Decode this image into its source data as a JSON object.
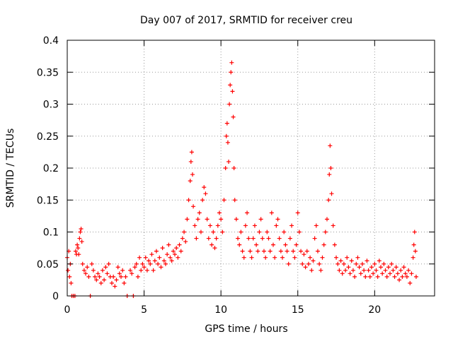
{
  "chart_data": {
    "type": "scatter",
    "title": "Day 007 of 2017, SRMTID for receiver creu",
    "xlabel": "GPS time / hours",
    "ylabel": "SRMTID / TECUs",
    "xlim": [
      0,
      23.9
    ],
    "ylim": [
      0,
      0.4
    ],
    "x_ticks": [
      0,
      5,
      10,
      15,
      20
    ],
    "x_tick_labels": [
      "0",
      "5",
      "10",
      "15",
      "20"
    ],
    "y_ticks": [
      0,
      0.05,
      0.1,
      0.15,
      0.2,
      0.25,
      0.3,
      0.35,
      0.4
    ],
    "y_tick_labels": [
      "0",
      "0.05",
      "0.1",
      "0.15",
      "0.2",
      "0.25",
      "0.3",
      "0.35",
      "0.4"
    ],
    "grid": true,
    "marker": "+",
    "series": [
      {
        "name": "SRMTID",
        "color": "#ff0000",
        "points": [
          [
            0.0,
            0.06
          ],
          [
            0.05,
            0.04
          ],
          [
            0.1,
            0.07
          ],
          [
            0.15,
            0.03
          ],
          [
            0.2,
            0.05
          ],
          [
            0.25,
            0.02
          ],
          [
            0.3,
            0.0
          ],
          [
            0.4,
            0.0
          ],
          [
            0.5,
            0.0
          ],
          [
            0.55,
            0.07
          ],
          [
            0.6,
            0.065
          ],
          [
            0.65,
            0.08
          ],
          [
            0.7,
            0.075
          ],
          [
            0.75,
            0.065
          ],
          [
            0.8,
            0.09
          ],
          [
            0.85,
            0.1
          ],
          [
            0.9,
            0.105
          ],
          [
            0.95,
            0.085
          ],
          [
            1.0,
            0.05
          ],
          [
            1.1,
            0.04
          ],
          [
            1.2,
            0.035
          ],
          [
            1.3,
            0.045
          ],
          [
            1.4,
            0.03
          ],
          [
            1.5,
            0.0
          ],
          [
            1.6,
            0.05
          ],
          [
            1.7,
            0.04
          ],
          [
            1.8,
            0.03
          ],
          [
            1.9,
            0.025
          ],
          [
            2.0,
            0.035
          ],
          [
            2.1,
            0.03
          ],
          [
            2.2,
            0.02
          ],
          [
            2.3,
            0.04
          ],
          [
            2.4,
            0.025
          ],
          [
            2.5,
            0.045
          ],
          [
            2.6,
            0.035
          ],
          [
            2.7,
            0.05
          ],
          [
            2.8,
            0.03
          ],
          [
            2.9,
            0.02
          ],
          [
            3.0,
            0.03
          ],
          [
            3.1,
            0.015
          ],
          [
            3.2,
            0.025
          ],
          [
            3.3,
            0.045
          ],
          [
            3.4,
            0.035
          ],
          [
            3.5,
            0.03
          ],
          [
            3.6,
            0.04
          ],
          [
            3.7,
            0.02
          ],
          [
            3.8,
            0.03
          ],
          [
            3.9,
            0.0
          ],
          [
            4.1,
            0.04
          ],
          [
            4.2,
            0.035
          ],
          [
            4.3,
            0.0
          ],
          [
            4.4,
            0.045
          ],
          [
            4.5,
            0.05
          ],
          [
            4.6,
            0.03
          ],
          [
            4.7,
            0.06
          ],
          [
            4.8,
            0.04
          ],
          [
            4.9,
            0.05
          ],
          [
            5.0,
            0.045
          ],
          [
            5.1,
            0.06
          ],
          [
            5.2,
            0.04
          ],
          [
            5.3,
            0.055
          ],
          [
            5.4,
            0.05
          ],
          [
            5.5,
            0.065
          ],
          [
            5.6,
            0.04
          ],
          [
            5.7,
            0.055
          ],
          [
            5.8,
            0.07
          ],
          [
            5.9,
            0.05
          ],
          [
            6.0,
            0.06
          ],
          [
            6.1,
            0.045
          ],
          [
            6.2,
            0.075
          ],
          [
            6.3,
            0.055
          ],
          [
            6.4,
            0.05
          ],
          [
            6.5,
            0.065
          ],
          [
            6.6,
            0.08
          ],
          [
            6.7,
            0.06
          ],
          [
            6.8,
            0.055
          ],
          [
            6.9,
            0.07
          ],
          [
            7.0,
            0.065
          ],
          [
            7.1,
            0.075
          ],
          [
            7.2,
            0.06
          ],
          [
            7.3,
            0.08
          ],
          [
            7.4,
            0.07
          ],
          [
            7.5,
            0.09
          ],
          [
            7.6,
            0.1
          ],
          [
            7.7,
            0.085
          ],
          [
            7.8,
            0.12
          ],
          [
            7.9,
            0.15
          ],
          [
            8.0,
            0.18
          ],
          [
            8.05,
            0.21
          ],
          [
            8.1,
            0.225
          ],
          [
            8.15,
            0.19
          ],
          [
            8.2,
            0.14
          ],
          [
            8.3,
            0.11
          ],
          [
            8.4,
            0.09
          ],
          [
            8.5,
            0.12
          ],
          [
            8.6,
            0.13
          ],
          [
            8.7,
            0.1
          ],
          [
            8.8,
            0.15
          ],
          [
            8.9,
            0.17
          ],
          [
            9.0,
            0.16
          ],
          [
            9.1,
            0.12
          ],
          [
            9.2,
            0.09
          ],
          [
            9.3,
            0.11
          ],
          [
            9.4,
            0.08
          ],
          [
            9.5,
            0.1
          ],
          [
            9.6,
            0.075
          ],
          [
            9.7,
            0.09
          ],
          [
            9.8,
            0.11
          ],
          [
            9.9,
            0.13
          ],
          [
            10.0,
            0.12
          ],
          [
            10.1,
            0.1
          ],
          [
            10.2,
            0.15
          ],
          [
            10.3,
            0.2
          ],
          [
            10.35,
            0.25
          ],
          [
            10.4,
            0.27
          ],
          [
            10.45,
            0.24
          ],
          [
            10.5,
            0.21
          ],
          [
            10.55,
            0.3
          ],
          [
            10.6,
            0.33
          ],
          [
            10.65,
            0.35
          ],
          [
            10.7,
            0.365
          ],
          [
            10.75,
            0.32
          ],
          [
            10.8,
            0.28
          ],
          [
            10.85,
            0.2
          ],
          [
            10.9,
            0.15
          ],
          [
            11.0,
            0.12
          ],
          [
            11.1,
            0.09
          ],
          [
            11.2,
            0.08
          ],
          [
            11.3,
            0.1
          ],
          [
            11.4,
            0.07
          ],
          [
            11.5,
            0.06
          ],
          [
            11.6,
            0.11
          ],
          [
            11.7,
            0.13
          ],
          [
            11.8,
            0.09
          ],
          [
            11.9,
            0.07
          ],
          [
            12.0,
            0.06
          ],
          [
            12.1,
            0.09
          ],
          [
            12.2,
            0.11
          ],
          [
            12.3,
            0.08
          ],
          [
            12.4,
            0.07
          ],
          [
            12.5,
            0.1
          ],
          [
            12.6,
            0.12
          ],
          [
            12.7,
            0.09
          ],
          [
            12.8,
            0.07
          ],
          [
            12.9,
            0.06
          ],
          [
            13.0,
            0.1
          ],
          [
            13.1,
            0.09
          ],
          [
            13.2,
            0.07
          ],
          [
            13.3,
            0.13
          ],
          [
            13.4,
            0.08
          ],
          [
            13.5,
            0.06
          ],
          [
            13.6,
            0.11
          ],
          [
            13.7,
            0.12
          ],
          [
            13.8,
            0.09
          ],
          [
            13.9,
            0.07
          ],
          [
            14.0,
            0.06
          ],
          [
            14.1,
            0.1
          ],
          [
            14.2,
            0.08
          ],
          [
            14.3,
            0.07
          ],
          [
            14.4,
            0.05
          ],
          [
            14.5,
            0.09
          ],
          [
            14.6,
            0.11
          ],
          [
            14.7,
            0.07
          ],
          [
            14.8,
            0.06
          ],
          [
            14.9,
            0.08
          ],
          [
            15.0,
            0.13
          ],
          [
            15.1,
            0.1
          ],
          [
            15.2,
            0.07
          ],
          [
            15.3,
            0.05
          ],
          [
            15.4,
            0.065
          ],
          [
            15.5,
            0.045
          ],
          [
            15.6,
            0.07
          ],
          [
            15.7,
            0.05
          ],
          [
            15.8,
            0.06
          ],
          [
            15.9,
            0.04
          ],
          [
            16.0,
            0.055
          ],
          [
            16.1,
            0.09
          ],
          [
            16.2,
            0.11
          ],
          [
            16.3,
            0.07
          ],
          [
            16.4,
            0.05
          ],
          [
            16.5,
            0.04
          ],
          [
            16.6,
            0.06
          ],
          [
            16.7,
            0.08
          ],
          [
            16.8,
            0.1
          ],
          [
            16.9,
            0.12
          ],
          [
            17.0,
            0.15
          ],
          [
            17.05,
            0.19
          ],
          [
            17.1,
            0.235
          ],
          [
            17.15,
            0.2
          ],
          [
            17.2,
            0.16
          ],
          [
            17.3,
            0.11
          ],
          [
            17.4,
            0.08
          ],
          [
            17.5,
            0.06
          ],
          [
            17.6,
            0.05
          ],
          [
            17.7,
            0.04
          ],
          [
            17.8,
            0.055
          ],
          [
            17.9,
            0.035
          ],
          [
            18.0,
            0.05
          ],
          [
            18.1,
            0.04
          ],
          [
            18.2,
            0.06
          ],
          [
            18.3,
            0.045
          ],
          [
            18.4,
            0.035
          ],
          [
            18.5,
            0.055
          ],
          [
            18.6,
            0.04
          ],
          [
            18.7,
            0.03
          ],
          [
            18.8,
            0.05
          ],
          [
            18.9,
            0.06
          ],
          [
            19.0,
            0.045
          ],
          [
            19.1,
            0.035
          ],
          [
            19.2,
            0.05
          ],
          [
            19.3,
            0.04
          ],
          [
            19.4,
            0.03
          ],
          [
            19.5,
            0.055
          ],
          [
            19.6,
            0.04
          ],
          [
            19.7,
            0.03
          ],
          [
            19.8,
            0.045
          ],
          [
            19.9,
            0.035
          ],
          [
            20.0,
            0.05
          ],
          [
            20.1,
            0.04
          ],
          [
            20.2,
            0.03
          ],
          [
            20.3,
            0.055
          ],
          [
            20.4,
            0.045
          ],
          [
            20.5,
            0.035
          ],
          [
            20.6,
            0.05
          ],
          [
            20.7,
            0.04
          ],
          [
            20.8,
            0.03
          ],
          [
            20.9,
            0.045
          ],
          [
            21.0,
            0.035
          ],
          [
            21.1,
            0.05
          ],
          [
            21.2,
            0.04
          ],
          [
            21.3,
            0.03
          ],
          [
            21.4,
            0.045
          ],
          [
            21.5,
            0.035
          ],
          [
            21.6,
            0.025
          ],
          [
            21.7,
            0.04
          ],
          [
            21.8,
            0.03
          ],
          [
            21.9,
            0.045
          ],
          [
            22.0,
            0.035
          ],
          [
            22.1,
            0.03
          ],
          [
            22.2,
            0.04
          ],
          [
            22.3,
            0.02
          ],
          [
            22.4,
            0.035
          ],
          [
            22.5,
            0.06
          ],
          [
            22.55,
            0.08
          ],
          [
            22.6,
            0.1
          ],
          [
            22.65,
            0.07
          ],
          [
            22.7,
            0.03
          ]
        ]
      }
    ]
  }
}
